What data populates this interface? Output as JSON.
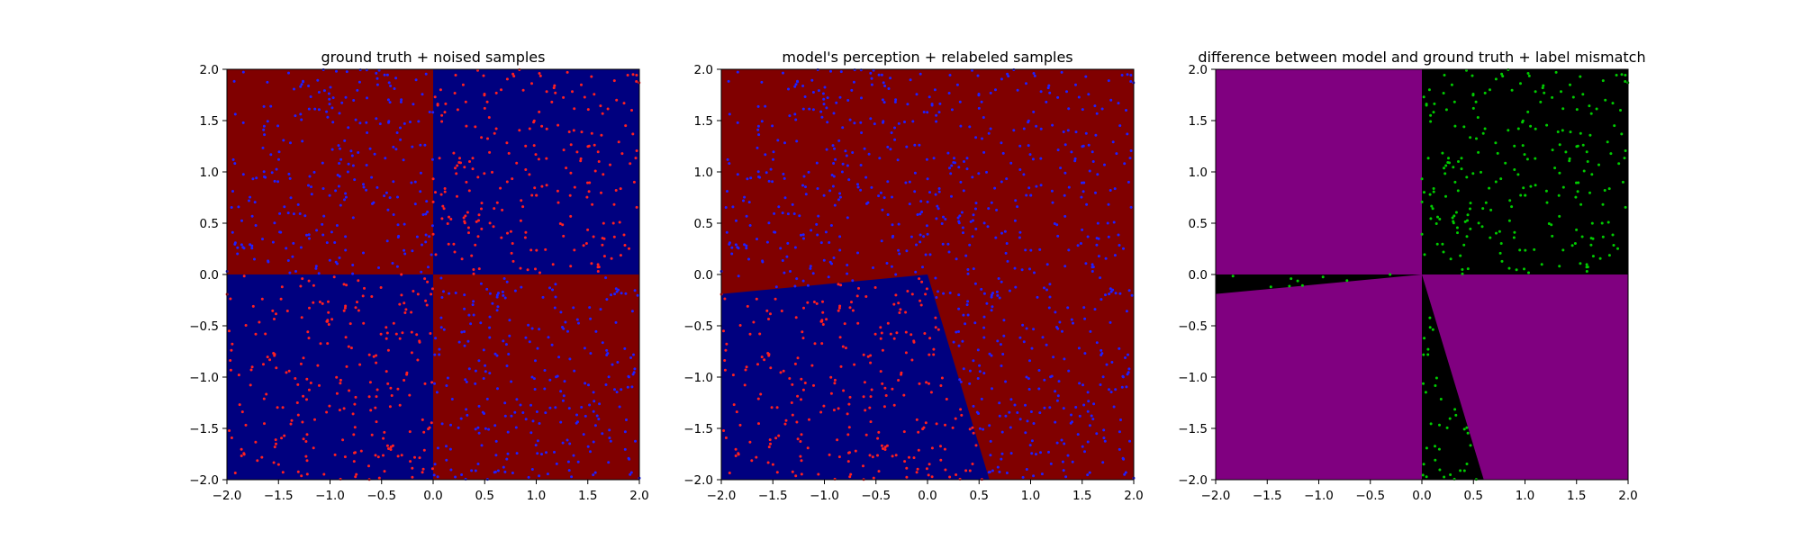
{
  "chart_data": [
    {
      "type": "scatter",
      "title": "ground truth + noised samples",
      "xlabel": "",
      "ylabel": "",
      "xlim": [
        -2.0,
        2.0
      ],
      "ylim": [
        -2.0,
        2.0
      ],
      "xticks": [
        "−2.0",
        "−1.5",
        "−1.0",
        "−0.5",
        "0.0",
        "0.5",
        "1.0",
        "1.5",
        "2.0"
      ],
      "yticks": [
        "−2.0",
        "−1.5",
        "−1.0",
        "−0.5",
        "0.0",
        "0.5",
        "1.0",
        "1.5",
        "2.0"
      ],
      "grid": false,
      "background_regions": [
        {
          "region": "x<0, y>0",
          "color": "#800000"
        },
        {
          "region": "x>0, y>0",
          "color": "#00007f"
        },
        {
          "region": "x<0, y<0",
          "color": "#00007f"
        },
        {
          "region": "x>0, y<0",
          "color": "#800000"
        }
      ],
      "samples": {
        "count": 1000,
        "distribution": "uniform over [-2,2]x[-2,2]",
        "label_rule": "red if x*y>0 else blue",
        "colors": {
          "red": "#ff2020",
          "blue": "#2020ff"
        }
      }
    },
    {
      "type": "scatter",
      "title": "model's perception + relabeled samples",
      "xlabel": "",
      "ylabel": "",
      "xlim": [
        -2.0,
        2.0
      ],
      "ylim": [
        -2.0,
        2.0
      ],
      "xticks": [
        "−2.0",
        "−1.5",
        "−1.0",
        "−0.5",
        "0.0",
        "0.5",
        "1.0",
        "1.5",
        "2.0"
      ],
      "yticks": [
        "−2.0",
        "−1.5",
        "−1.0",
        "−0.5",
        "0.0",
        "0.5",
        "1.0",
        "1.5",
        "2.0"
      ],
      "grid": false,
      "background_regions": [
        {
          "region": "blue wedge below line (-2,-0.19)-(0,0) and left of line (0,0)-(0.6,-2)",
          "color": "#00007f"
        },
        {
          "region": "elsewhere",
          "color": "#800000"
        }
      ],
      "boundary_lines": [
        {
          "from": [
            -2.0,
            -0.19
          ],
          "to": [
            0.0,
            0.0
          ]
        },
        {
          "from": [
            0.0,
            0.0
          ],
          "to": [
            0.6,
            -2.0
          ]
        }
      ],
      "samples": {
        "count": 1000,
        "label_rule": "red inside blue wedge, blue elsewhere",
        "colors": {
          "red": "#ff2020",
          "blue": "#2020ff"
        }
      }
    },
    {
      "type": "scatter",
      "title": "difference between model and ground truth + label mismatch",
      "xlabel": "",
      "ylabel": "",
      "xlim": [
        -2.0,
        2.0
      ],
      "ylim": [
        -2.0,
        2.0
      ],
      "xticks": [
        "−2.0",
        "−1.5",
        "−1.0",
        "−0.5",
        "0.0",
        "0.5",
        "1.0",
        "1.5",
        "2.0"
      ],
      "yticks": [
        "−2.0",
        "−1.5",
        "−1.0",
        "−0.5",
        "0.0",
        "0.5",
        "1.0",
        "1.5",
        "2.0"
      ],
      "grid": false,
      "background_regions": [
        {
          "region": "disagreement",
          "color": "#800080"
        },
        {
          "region": "agreement (x>0,y>0 quadrant and two thin wedges)",
          "color": "#000000"
        }
      ],
      "samples": {
        "count": 1000,
        "label_rule": "green where ground-truth label differs from model label",
        "colors": {
          "mismatch": "#00cc00"
        }
      }
    }
  ]
}
